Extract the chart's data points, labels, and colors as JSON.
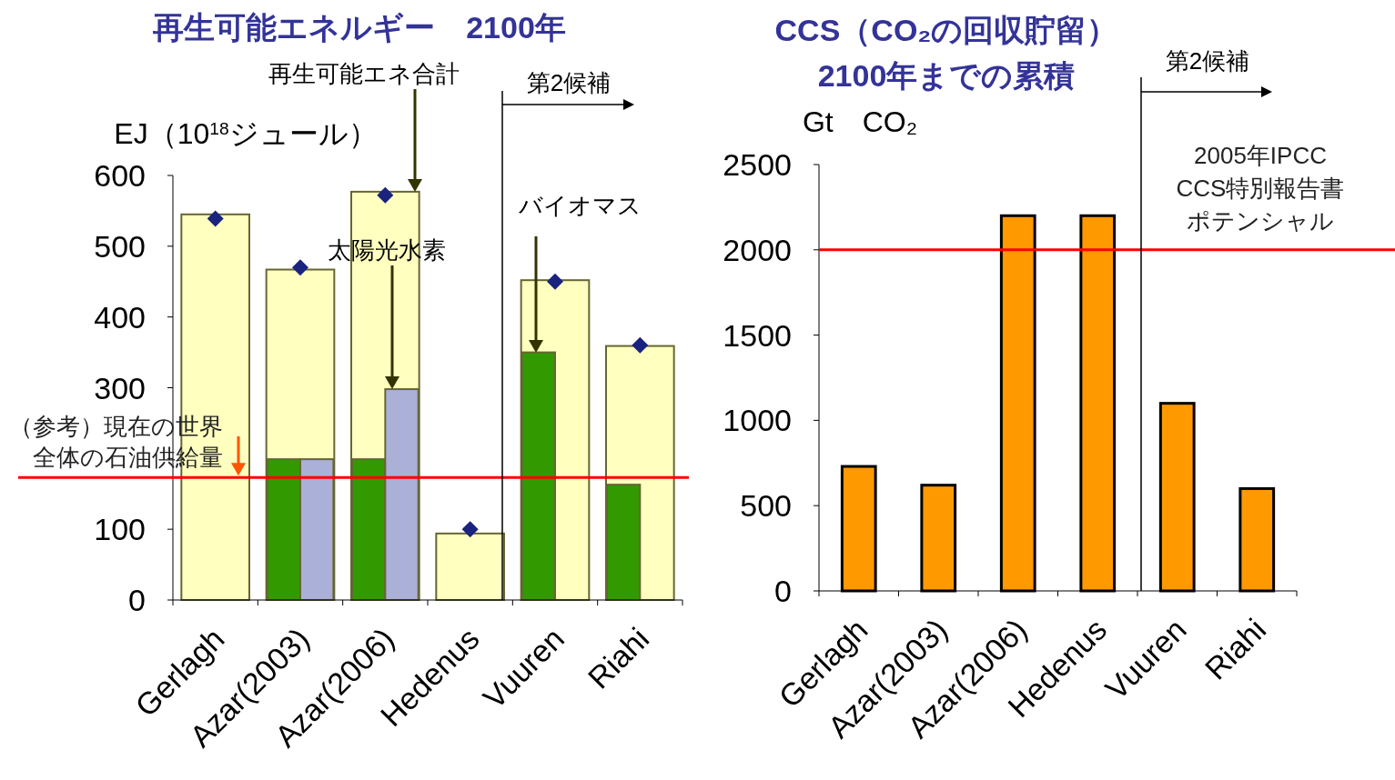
{
  "chart_data": [
    {
      "type": "bar",
      "title": "再生可能エネルギー　2100年",
      "ylabel": "EJ（10$^{18}$ジュール）",
      "categories": [
        "Gerlagh",
        "Azar(2003)",
        "Azar(2006)",
        "Hedenus",
        "Vuuren",
        "Riahi"
      ],
      "ylim": [
        0,
        600
      ],
      "yticks": [
        0,
        100,
        {
          "value": 200,
          "label": null
        },
        300,
        400,
        500,
        600
      ],
      "series": [
        {
          "color": "#ffffc0",
          "values": [
            545,
            467,
            577,
            94,
            452,
            359
          ]
        },
        {
          "color": "#339900",
          "values": [
            null,
            199,
            199,
            null,
            350,
            163
          ]
        },
        {
          "color": "#aab0d8",
          "values": [
            null,
            199,
            298,
            null,
            null,
            null
          ]
        },
        {
          "type": "scatter",
          "marker": "diamond",
          "color": "#1a237e",
          "values": [
            539,
            470,
            572,
            100,
            450,
            360
          ]
        }
      ],
      "ref_lines": [
        {
          "axis": "y",
          "value": 173,
          "label": "（参考）現在の世界全体の石油供給量",
          "color": "#ff0000"
        }
      ],
      "annotations": [
        "再生可能エネ合計",
        "太陽光水素",
        "バイオマス",
        "第2候補"
      ]
    },
    {
      "type": "bar",
      "title": "CCS（CO₂の回収貯留）\n2100年までの累積",
      "ylabel": "Gt　CO₂",
      "categories": [
        "Gerlagh",
        "Azar(2003)",
        "Azar(2006)",
        "Hedenus",
        "Vuuren",
        "Riahi"
      ],
      "ylim": [
        0,
        2500
      ],
      "yticks": [
        0,
        500,
        1000,
        1500,
        2000,
        2500
      ],
      "series": [
        {
          "color": "#ff9900",
          "values": [
            730,
            620,
            2200,
            2200,
            1100,
            600
          ]
        }
      ],
      "ref_lines": [
        {
          "axis": "y",
          "value": 2000,
          "label": "2005年IPCC CCS特別報告書ポテンシャル",
          "color": "#ff0000"
        }
      ],
      "annotations": [
        "第2候補"
      ]
    }
  ]
}
